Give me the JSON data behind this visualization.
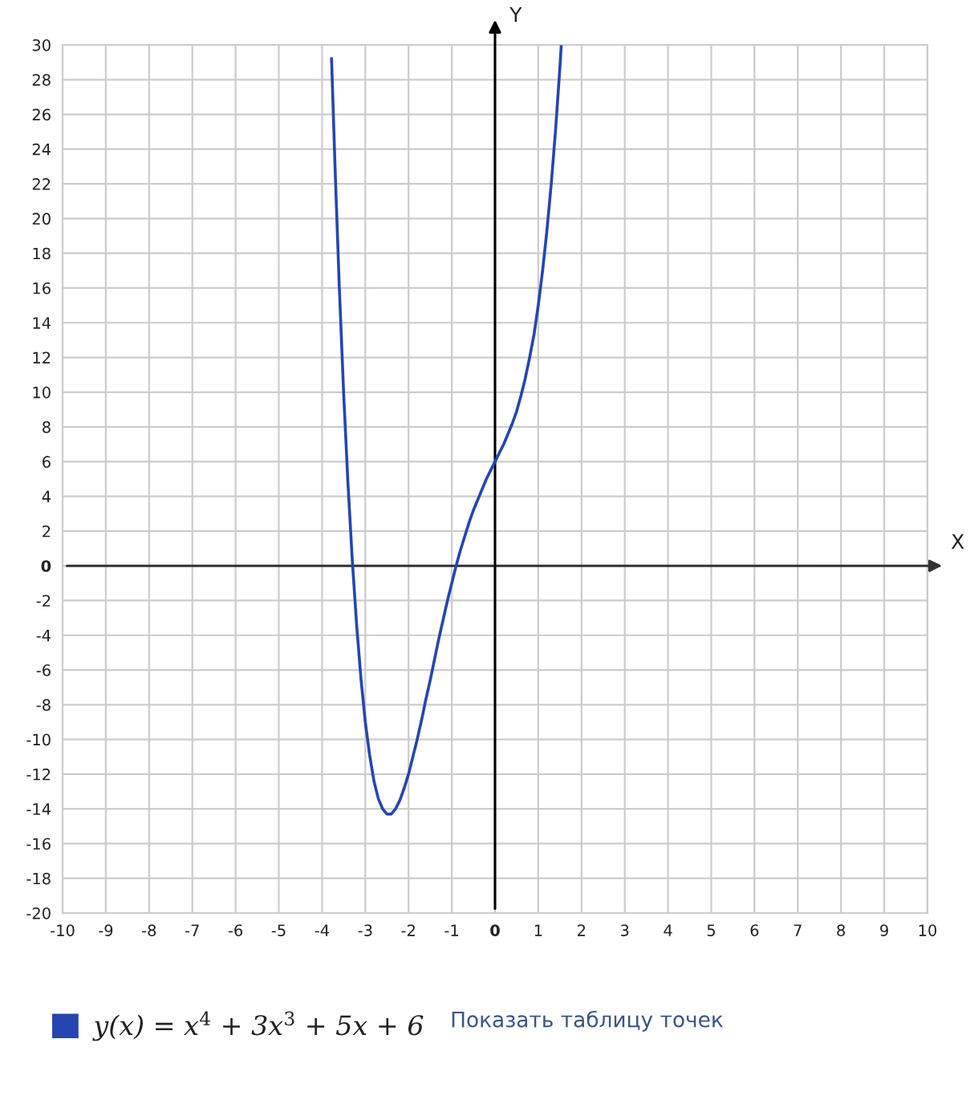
{
  "chart_data": {
    "type": "line",
    "xlabel": "X",
    "ylabel": "Y",
    "x": [
      -3.78,
      -3.7,
      -3.6,
      -3.5,
      -3.4,
      -3.3,
      -3.2,
      -3.1,
      -3.0,
      -2.9,
      -2.8,
      -2.7,
      -2.6,
      -2.5,
      -2.4,
      -2.3,
      -2.2,
      -2.1,
      -2.0,
      -1.9,
      -1.8,
      -1.7,
      -1.6,
      -1.5,
      -1.4,
      -1.3,
      -1.2,
      -1.1,
      -1.0,
      -0.9,
      -0.8,
      -0.7,
      -0.6,
      -0.5,
      -0.4,
      -0.3,
      -0.2,
      -0.1,
      0.0,
      0.1,
      0.2,
      0.3,
      0.4,
      0.5,
      0.6,
      0.7,
      0.8,
      0.9,
      1.0,
      1.1,
      1.2,
      1.3,
      1.4,
      1.5,
      1.53
    ],
    "series": [
      {
        "name": "y(x) = x$^{4}$ + 3x$^{3}$ + 5x + 6",
        "color": "#2546b0",
        "values": [
          29.2,
          23.0,
          16.0,
          9.9,
          4.7,
          0.3,
          -3.4,
          -6.5,
          -9.0,
          -10.9,
          -12.4,
          -13.4,
          -14.0,
          -14.3,
          -14.3,
          -14.0,
          -13.5,
          -12.8,
          -12.0,
          -11.0,
          -10.0,
          -8.9,
          -7.7,
          -6.6,
          -5.4,
          -4.2,
          -3.1,
          -2.0,
          -1.0,
          0.0,
          0.9,
          1.7,
          2.5,
          3.2,
          3.8,
          4.4,
          5.0,
          5.5,
          6.0,
          6.5,
          7.0,
          7.6,
          8.2,
          8.9,
          9.8,
          10.8,
          12.0,
          13.3,
          15.0,
          17.0,
          19.3,
          22.0,
          25.1,
          28.7,
          29.9
        ]
      }
    ],
    "xlim": [
      -10,
      10
    ],
    "ylim": [
      -20,
      30
    ],
    "xticks": [
      -10,
      -9,
      -8,
      -7,
      -6,
      -5,
      -4,
      -3,
      -2,
      -1,
      0,
      1,
      2,
      3,
      4,
      5,
      6,
      7,
      8,
      9,
      10
    ],
    "yticks": [
      -20,
      -18,
      -16,
      -14,
      -12,
      -10,
      -8,
      -6,
      -4,
      -2,
      0,
      2,
      4,
      6,
      8,
      10,
      12,
      14,
      16,
      18,
      20,
      22,
      24,
      26,
      28,
      30
    ],
    "grid": true,
    "legend": "bottom",
    "annotations": [
      "Показать таблицу точек"
    ]
  }
}
